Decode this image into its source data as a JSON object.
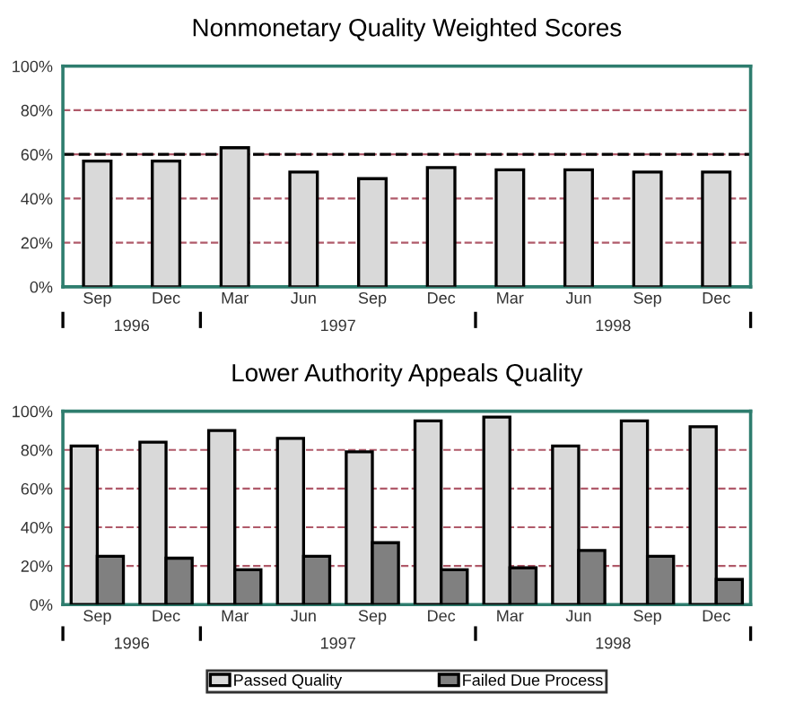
{
  "chart_data": [
    {
      "type": "bar",
      "title": "Nonmonetary Quality Weighted Scores",
      "categories": [
        "Sep",
        "Dec",
        "Mar",
        "Jun",
        "Sep",
        "Dec",
        "Mar",
        "Jun",
        "Sep",
        "Dec"
      ],
      "values": [
        57,
        57,
        63,
        52,
        49,
        54,
        53,
        53,
        52,
        52
      ],
      "color": "#d9d9d9",
      "ylim": [
        0,
        100
      ],
      "yticks": [
        {
          "value": 0,
          "label": "0%"
        },
        {
          "value": 20,
          "label": "20%"
        },
        {
          "value": 40,
          "label": "40%"
        },
        {
          "value": 60,
          "label": "60%"
        },
        {
          "value": 80,
          "label": "80%"
        },
        {
          "value": 100,
          "label": "100%"
        }
      ],
      "grid": "y",
      "ref_lines": [
        {
          "axis": "y",
          "value": 60,
          "color": "#000000",
          "line_style": "dashed"
        }
      ],
      "annotations": [
        "1996",
        "1997",
        "1998"
      ]
    },
    {
      "type": "bar",
      "title": "Lower Authority Appeals Quality",
      "categories": [
        "Sep",
        "Dec",
        "Mar",
        "Jun",
        "Sep",
        "Dec",
        "Mar",
        "Jun",
        "Sep",
        "Dec"
      ],
      "series": [
        {
          "name": "Passed Quality",
          "color": "#d9d9d9",
          "values": [
            82,
            84,
            90,
            86,
            79,
            95,
            97,
            82,
            95,
            92
          ]
        },
        {
          "name": "Failed Due Process",
          "color": "#808080",
          "values": [
            25,
            24,
            18,
            25,
            32,
            18,
            19,
            28,
            25,
            13
          ]
        }
      ],
      "ylim": [
        0,
        100
      ],
      "yticks": [
        {
          "value": 0,
          "label": "0%"
        },
        {
          "value": 20,
          "label": "20%"
        },
        {
          "value": 40,
          "label": "40%"
        },
        {
          "value": 60,
          "label": "60%"
        },
        {
          "value": 80,
          "label": "80%"
        },
        {
          "value": 100,
          "label": "100%"
        }
      ],
      "grid": "y",
      "legend": "bottom",
      "annotations": [
        "1996",
        "1997",
        "1998"
      ]
    }
  ]
}
